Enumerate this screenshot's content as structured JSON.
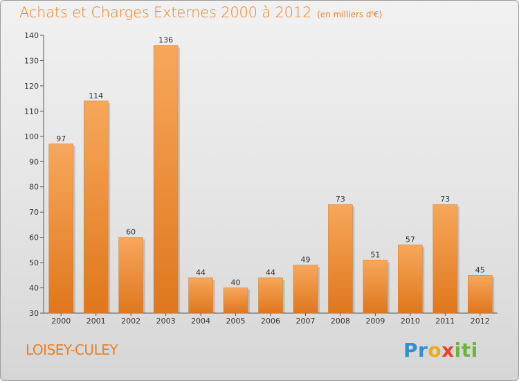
{
  "title": "Achats et Charges Externes 2000 à 2012",
  "unit": "(en milliers d'€)",
  "place": "LOISEY-CULEY",
  "logo": {
    "letters": [
      {
        "char": "P",
        "color": "#2f8fd6"
      },
      {
        "char": "r",
        "color": "#2f8fd6"
      },
      {
        "char": "o",
        "color": "#f2a81d"
      },
      {
        "char": "x",
        "color": "#e8412c"
      },
      {
        "char": "i",
        "color": "#6cb33e"
      },
      {
        "char": "t",
        "color": "#6cb33e"
      },
      {
        "char": "i",
        "color": "#6cb33e"
      }
    ]
  },
  "colors": {
    "bar_light": "#f7a75b",
    "bar_dark": "#df771d",
    "title": "#ee7e22"
  },
  "chart_data": {
    "type": "bar",
    "title": "Achats et Charges Externes 2000 à 2012",
    "subtitle": "(en milliers d'€)",
    "categories": [
      "2000",
      "2001",
      "2002",
      "2003",
      "2004",
      "2005",
      "2006",
      "2007",
      "2008",
      "2009",
      "2010",
      "2011",
      "2012"
    ],
    "values": [
      97,
      114,
      60,
      136,
      44,
      40,
      44,
      49,
      73,
      51,
      57,
      73,
      45
    ],
    "ylim": [
      30,
      140
    ],
    "yticks": [
      30,
      40,
      50,
      60,
      70,
      80,
      90,
      100,
      110,
      120,
      130,
      140
    ],
    "grid": false,
    "legend": "none"
  }
}
